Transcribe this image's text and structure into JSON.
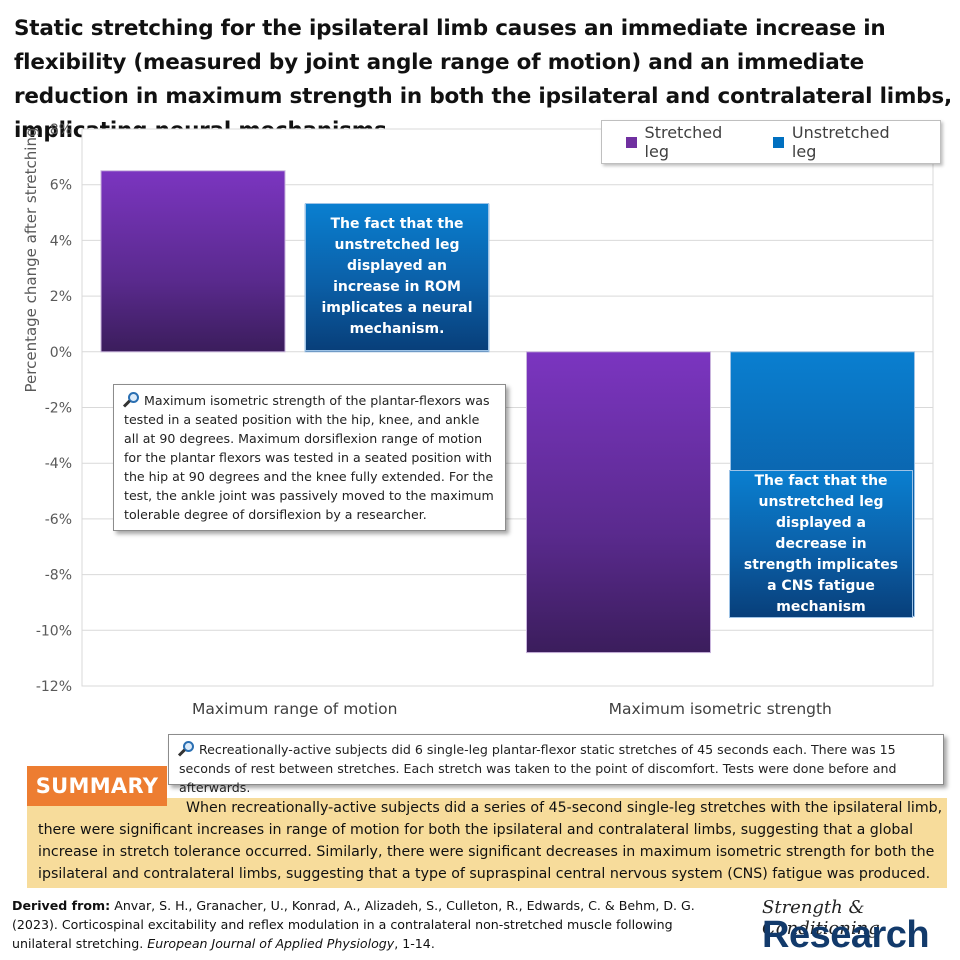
{
  "title": "Static stretching for the ipsilateral limb causes an immediate increase in flexibility (measured by joint angle range of motion) and an immediate reduction in maximum strength in both the ipsilateral and contralateral limbs, implicating neural mechanisms.",
  "colors": {
    "stretched": "#7030a0",
    "unstretched": "#0070c0",
    "summary_tag": "#ed7d31",
    "summary_bg": "#f7dc9b"
  },
  "chart_data": {
    "type": "bar",
    "categories": [
      "Maximum range of motion",
      "Maximum isometric strength"
    ],
    "series": [
      {
        "name": "Stretched leg",
        "values": [
          6.5,
          -10.8
        ]
      },
      {
        "name": "Unstretched leg",
        "values": [
          5.3,
          -9.5
        ]
      }
    ],
    "xlabel": "",
    "ylabel": "Percentage change after stretching",
    "ylim": [
      -12,
      8
    ],
    "yticks": [
      "8%",
      "6%",
      "4%",
      "2%",
      "0%",
      "-2%",
      "-4%",
      "-6%",
      "-8%",
      "-10%",
      "-12%"
    ],
    "grid": true,
    "legend_position": "top-right"
  },
  "legend": {
    "stretched": "Stretched leg",
    "unstretched": "Unstretched leg"
  },
  "callouts": {
    "rom_note": "The fact that the unstretched leg displayed an increase in ROM implicates a neural mechanism.",
    "strength_note": "The fact that the unstretched leg displayed a decrease in strength implicates a CNS fatigue mechanism",
    "methods_note": "Maximum isometric strength of the plantar-flexors was tested in a seated position with the hip, knee, and ankle all at 90 degrees. Maximum dorsiflexion range of motion for the plantar flexors was tested in a seated position with the hip at 90 degrees and the knee fully extended. For the test, the ankle joint was passively moved to the maximum tolerable degree of dorsiflexion by a researcher.",
    "subjects_note": "Recreationally-active subjects did 6 single-leg plantar-flexor static stretches of 45 seconds each. There was 15 seconds of rest between stretches. Each stretch was taken to the point of discomfort. Tests were done before and afterwards."
  },
  "summary": {
    "tag": "SUMMARY",
    "text": "When recreationally-active subjects did a series of 45-second single-leg stretches with the ipsilateral limb, there were significant increases in range of motion for both the ipsilateral and contralateral limbs, suggesting that a global increase in stretch tolerance occurred. Similarly, there were significant decreases in maximum isometric strength for both the ipsilateral and contralateral limbs, suggesting that a type of supraspinal central nervous system (CNS) fatigue was produced."
  },
  "source": {
    "label": "Derived from:",
    "citation": "Anvar, S. H., Granacher, U., Konrad, A., Alizadeh, S., Culleton, R., Edwards, C. & Behm, D. G. (2023). Corticospinal excitability and reflex modulation in a contralateral non-stretched muscle following unilateral stretching.",
    "journal": "European Journal of Applied Physiology",
    "pages": ", 1-14."
  },
  "logo": {
    "line1": "Strength & Conditioning",
    "line2": "Research"
  },
  "icons": {
    "note": "magnifier-icon"
  }
}
